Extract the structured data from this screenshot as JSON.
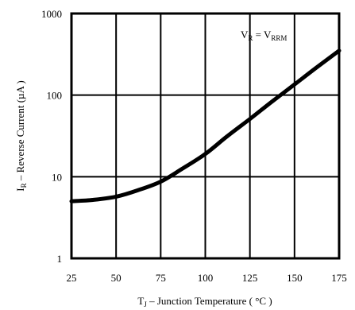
{
  "chart_data": {
    "type": "line",
    "xlabel": {
      "main": "T",
      "sub": "J",
      "rest": " – Junction Temperature ( °C )"
    },
    "ylabel": {
      "main": "I",
      "sub": "R",
      "rest": " – Reverse Current (µA )"
    },
    "annotation": {
      "main1": "V",
      "sub1": "R",
      "mid": " = V",
      "sub2": "RRM"
    },
    "xlim": [
      25,
      175
    ],
    "ylim": [
      1,
      1000
    ],
    "yscale": "log",
    "grid": true,
    "x_ticks": [
      "25",
      "50",
      "75",
      "100",
      "125",
      "150",
      "175"
    ],
    "y_ticks": [
      "1",
      "10",
      "100",
      "1000"
    ],
    "series": [
      {
        "x": [
          25,
          37,
          50,
          62,
          75,
          87,
          100,
          112,
          125,
          137,
          150,
          162,
          175
        ],
        "y": [
          5.0,
          5.2,
          5.7,
          6.8,
          8.7,
          12.5,
          19,
          31,
          51,
          82,
          135,
          215,
          350
        ]
      }
    ]
  }
}
